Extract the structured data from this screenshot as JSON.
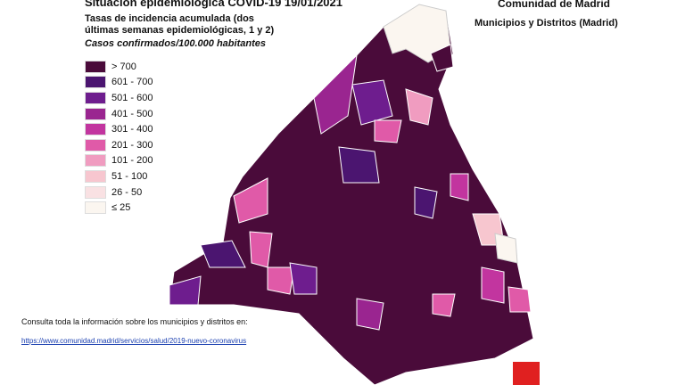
{
  "header": {
    "title": "Situación epidemiológica COVID-19  19/01/2021",
    "subtitle": "Tasas de incidencia acumulada (dos últimas semanas epidemiológicas, 1 y 2)",
    "unit": "Casos confirmados/100.000 habitantes",
    "org": "Comunidad de Madrid",
    "scope": "Municipios y Distritos (Madrid)"
  },
  "legend": {
    "items": [
      {
        "label": "> 700",
        "color": "#4a0b3a"
      },
      {
        "label": "601 - 700",
        "color": "#4b1570"
      },
      {
        "label": "501 - 600",
        "color": "#6e1d8e"
      },
      {
        "label": "401 - 500",
        "color": "#9a2590"
      },
      {
        "label": "301 - 400",
        "color": "#c2359f"
      },
      {
        "label": "201 - 300",
        "color": "#e05aa8"
      },
      {
        "label": "101 - 200",
        "color": "#f09cc0"
      },
      {
        "label": "51 - 100",
        "color": "#f7c6cf"
      },
      {
        "label": "26 - 50",
        "color": "#f9e1e3"
      },
      {
        "label": "≤ 25",
        "color": "#fbf6f0"
      }
    ]
  },
  "footer": {
    "note": "Consulta toda la información sobre los municipios y distritos en:",
    "url": "https://www.comunidad.madrid/servicios/salud/2019-nuevo-coronavirus"
  }
}
